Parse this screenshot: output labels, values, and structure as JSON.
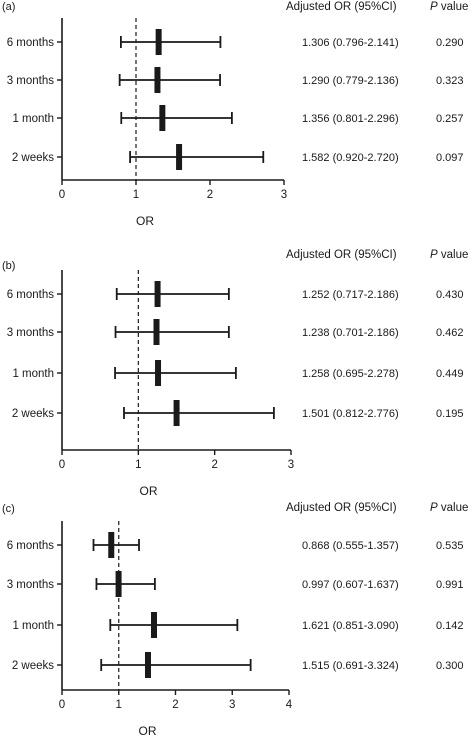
{
  "chart_data": [
    {
      "type": "forest",
      "panel_label": "(a)",
      "categories": [
        "6 months",
        "3 months",
        "1 month",
        "2 weeks"
      ],
      "or": [
        1.306,
        1.29,
        1.356,
        1.582
      ],
      "ci_low": [
        0.796,
        0.779,
        0.801,
        0.92
      ],
      "ci_high": [
        2.141,
        2.136,
        2.296,
        2.72
      ],
      "ci_text": [
        "1.306 (0.796-2.141)",
        "1.290 (0.779-2.136)",
        "1.356 (0.801-2.296)",
        "1.582 (0.920-2.720)"
      ],
      "p_values": [
        "0.290",
        "0.323",
        "0.257",
        "0.097"
      ],
      "xlim": [
        0,
        3
      ],
      "xticks": [
        "0",
        "1",
        "2",
        "3"
      ],
      "reference_line": 1,
      "xlabel": "OR",
      "header_or": "Adjusted OR (95%CI)",
      "header_p_italic": "P",
      "header_p_rest": " value"
    },
    {
      "type": "forest",
      "panel_label": "(b)",
      "categories": [
        "6 months",
        "3 months",
        "1 month",
        "2 weeks"
      ],
      "or": [
        1.252,
        1.238,
        1.258,
        1.501
      ],
      "ci_low": [
        0.717,
        0.701,
        0.695,
        0.812
      ],
      "ci_high": [
        2.186,
        2.186,
        2.278,
        2.776
      ],
      "ci_text": [
        "1.252 (0.717-2.186)",
        "1.238 (0.701-2.186)",
        "1.258 (0.695-2.278)",
        "1.501 (0.812-2.776)"
      ],
      "p_values": [
        "0.430",
        "0.462",
        "0.449",
        "0.195"
      ],
      "xlim": [
        0,
        3
      ],
      "xticks": [
        "0",
        "1",
        "2",
        "3"
      ],
      "reference_line": 1,
      "xlabel": "OR",
      "header_or": "Adjusted OR (95%CI)",
      "header_p_italic": "P",
      "header_p_rest": " value"
    },
    {
      "type": "forest",
      "panel_label": "(c)",
      "categories": [
        "6 months",
        "3 months",
        "1 month",
        "2 weeks"
      ],
      "or": [
        0.868,
        0.997,
        1.621,
        1.515
      ],
      "ci_low": [
        0.555,
        0.607,
        0.851,
        0.691
      ],
      "ci_high": [
        1.357,
        1.637,
        3.09,
        3.324
      ],
      "ci_text": [
        "0.868 (0.555-1.357)",
        "0.997 (0.607-1.637)",
        "1.621 (0.851-3.090)",
        "1.515 (0.691-3.324)"
      ],
      "p_values": [
        "0.535",
        "0.991",
        "0.142",
        "0.300"
      ],
      "xlim": [
        0,
        4
      ],
      "xticks": [
        "0",
        "1",
        "2",
        "3",
        "4"
      ],
      "reference_line": 1,
      "xlabel": "OR",
      "header_or": "Adjusted OR (95%CI)",
      "header_p_italic": "P",
      "header_p_rest": " value"
    }
  ]
}
